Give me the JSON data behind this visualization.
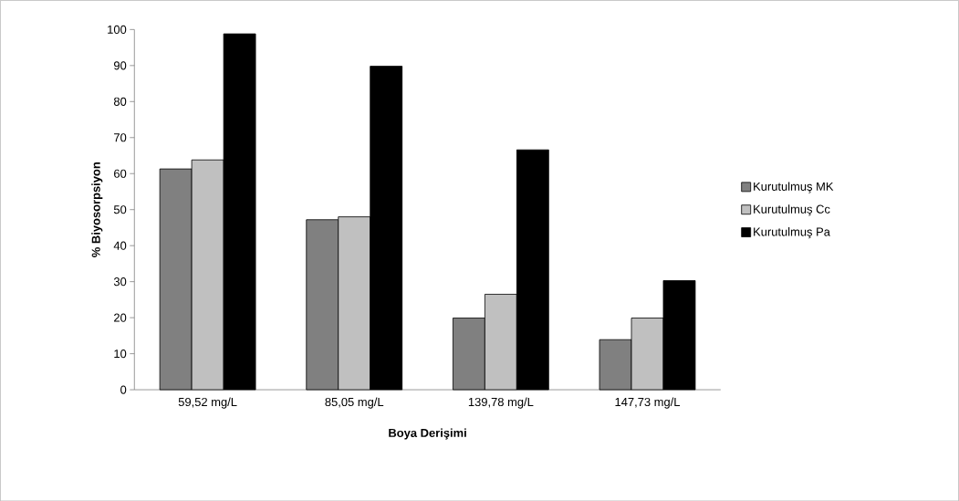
{
  "chart_data": {
    "type": "bar",
    "xlabel": "Boya Derişimi",
    "ylabel": "% Biyosorpsiyon",
    "categories": [
      "59,52 mg/L",
      "85,05 mg/L",
      "139,78 mg/L",
      "147,73 mg/L"
    ],
    "series": [
      {
        "name": "Kurutulmuş MK",
        "color": "#808080",
        "values": [
          61.3,
          47.2,
          19.9,
          13.9
        ]
      },
      {
        "name": "Kurutulmuş Cc",
        "color": "#c0c0c0",
        "values": [
          63.8,
          48.0,
          26.5,
          19.9
        ]
      },
      {
        "name": "Kurutulmuş Pa",
        "color": "#000000",
        "values": [
          98.8,
          89.8,
          66.6,
          30.3
        ]
      }
    ],
    "ylim": [
      0,
      100
    ],
    "yticks": [
      0,
      10,
      20,
      30,
      40,
      50,
      60,
      70,
      80,
      90,
      100
    ],
    "grid": false,
    "legend": "right"
  }
}
